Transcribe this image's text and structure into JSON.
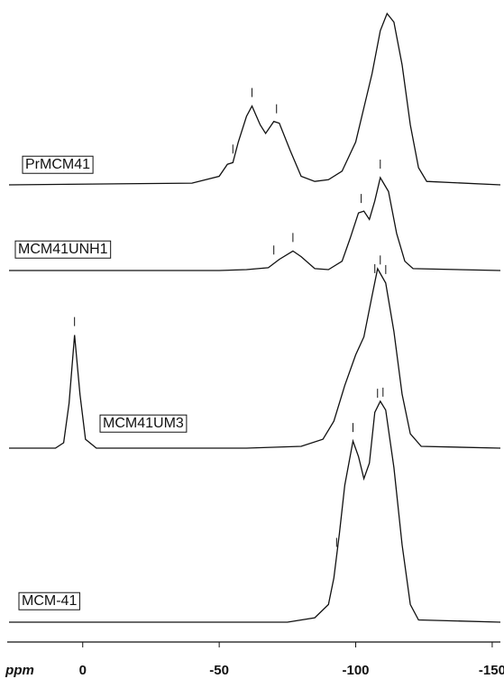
{
  "chart_data": {
    "type": "line",
    "x_label": "ppm",
    "xlim": [
      27,
      -153
    ],
    "xticks": [
      0,
      -50,
      -100,
      -150
    ],
    "color": "#111111",
    "series": [
      {
        "name": "PrMCM41",
        "color": "#111111",
        "x": [
          27,
          -40,
          -50,
          -53,
          -55,
          -57,
          -60,
          -62,
          -65,
          -67,
          -70,
          -72,
          -76,
          -80,
          -85,
          -90,
          -95,
          -100,
          -103,
          -106,
          -109,
          -111.5,
          -114,
          -117,
          -120,
          -123,
          -126,
          -153
        ],
        "values": [
          0,
          1,
          5,
          12,
          13,
          25,
          40,
          46,
          35,
          30,
          37,
          36,
          20,
          5,
          2,
          3,
          8,
          25,
          45,
          65,
          90,
          100,
          95,
          70,
          35,
          10,
          2,
          0
        ],
        "peaks": [
          -55,
          -62,
          -71
        ]
      },
      {
        "name": "MCM41UNH1",
        "color": "#111111",
        "x": [
          27,
          -50,
          -60,
          -68,
          -72,
          -77,
          -80,
          -85,
          -90,
          -95,
          -98,
          -101,
          -103,
          -105,
          -107,
          -109,
          -112,
          -115,
          -118,
          -121,
          -153
        ],
        "values": [
          0,
          0,
          1,
          3,
          12,
          21,
          15,
          2,
          1,
          10,
          35,
          62,
          64,
          55,
          75,
          100,
          85,
          40,
          10,
          2,
          0
        ],
        "peaks": [
          -70,
          -77,
          -102,
          -109
        ]
      },
      {
        "name": "MCM41UM3",
        "color": "#111111",
        "x": [
          27,
          10,
          7,
          5,
          3,
          1,
          -1,
          -5,
          -60,
          -80,
          -88,
          -92,
          -96,
          -100,
          -103,
          -106,
          -108,
          -111,
          -114,
          -117,
          -120,
          -124,
          -153
        ],
        "values": [
          0,
          0,
          3,
          25,
          63,
          30,
          5,
          0,
          0,
          1,
          5,
          15,
          35,
          52,
          62,
          85,
          100,
          92,
          65,
          30,
          8,
          1,
          0
        ],
        "peaks": [
          3,
          -107,
          -109,
          -111
        ]
      },
      {
        "name": "MCM-41",
        "color": "#111111",
        "x": [
          27,
          -75,
          -85,
          -90,
          -92,
          -94,
          -96,
          -99,
          -101,
          -103,
          -105,
          -107,
          -109,
          -111,
          -114,
          -117,
          -120,
          -123,
          -153
        ],
        "values": [
          0,
          0,
          2,
          8,
          20,
          40,
          62,
          82,
          75,
          65,
          72,
          95,
          100,
          96,
          70,
          35,
          8,
          1,
          0
        ],
        "peaks": [
          -93,
          -99,
          -108,
          -110
        ]
      }
    ]
  }
}
